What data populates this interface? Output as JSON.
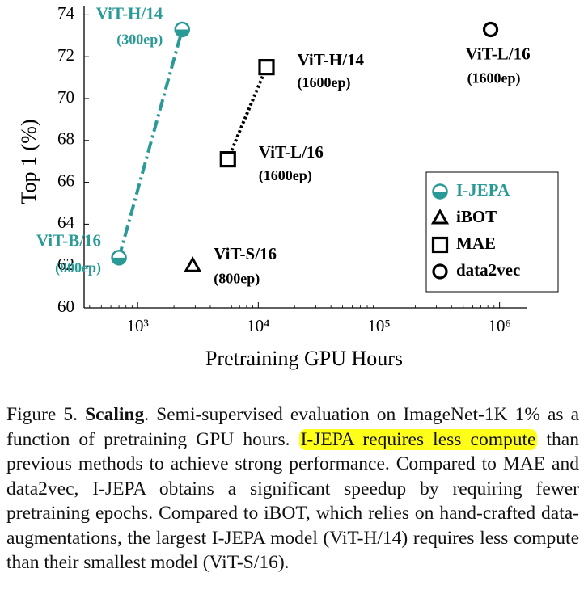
{
  "chart_data": {
    "type": "scatter",
    "ylabel": "Top 1 (%)",
    "xlabel": "Pretraining GPU Hours",
    "xlog": true,
    "xlim": [
      360,
      1700000
    ],
    "ylim": [
      60,
      74.4
    ],
    "xticks": [
      {
        "value": 1000,
        "label": "10³"
      },
      {
        "value": 10000,
        "label": "10⁴"
      },
      {
        "value": 100000,
        "label": "10⁵"
      },
      {
        "value": 1000000,
        "label": "10⁶"
      }
    ],
    "xminorticks": [
      400,
      500,
      600,
      700,
      800,
      900,
      2000,
      3000,
      4000,
      5000,
      6000,
      7000,
      8000,
      9000,
      20000,
      30000,
      40000,
      50000,
      60000,
      70000,
      80000,
      90000,
      200000,
      300000,
      400000,
      500000,
      600000,
      700000,
      800000,
      900000
    ],
    "yticks": [
      60,
      62,
      64,
      66,
      68,
      70,
      72,
      74
    ],
    "legend": "lower right",
    "series": [
      {
        "name": "I-JEPA",
        "color": "#2a9a96",
        "marker": "half-circle",
        "line": "dashdot",
        "x": [
          700,
          2340
        ],
        "values": [
          62.4,
          73.3
        ],
        "labels": [
          "ViT-B/16",
          "ViT-H/14"
        ],
        "epochs": [
          "(800ep)",
          "(300ep)"
        ]
      },
      {
        "name": "iBOT",
        "color": "#000000",
        "marker": "triangle",
        "x": [
          2860
        ],
        "values": [
          62.0
        ],
        "labels": [
          "ViT-S/16"
        ],
        "epochs": [
          "(800ep)"
        ]
      },
      {
        "name": "MAE",
        "color": "#000000",
        "marker": "square",
        "line": "dotted",
        "x": [
          5600,
          11700
        ],
        "values": [
          67.1,
          71.5
        ],
        "labels": [
          "ViT-L/16",
          "ViT-H/14"
        ],
        "epochs": [
          "(1600ep)",
          "(1600ep)"
        ]
      },
      {
        "name": "data2vec",
        "color": "#000000",
        "marker": "circle",
        "x": [
          843000
        ],
        "values": [
          73.3
        ],
        "labels": [
          "ViT-L/16"
        ],
        "epochs": [
          "(1600ep)"
        ]
      }
    ]
  },
  "caption": {
    "label": "Figure 5.",
    "title": "Scaling",
    "text_before": ".  Semi-supervised evaluation on ImageNet-1K 1% as a function of pretraining GPU hours. ",
    "highlight": "I-JEPA requires less compute",
    "text_after": " than previous methods to achieve strong performance. Compared to MAE and data2vec, I-JEPA obtains a significant speedup by requiring fewer pretraining epochs. Compared to iBOT, which relies on hand-crafted data-augmentations, the largest I-JEPA model (ViT-H/14) requires less compute than their smallest model (ViT-S/16)."
  }
}
